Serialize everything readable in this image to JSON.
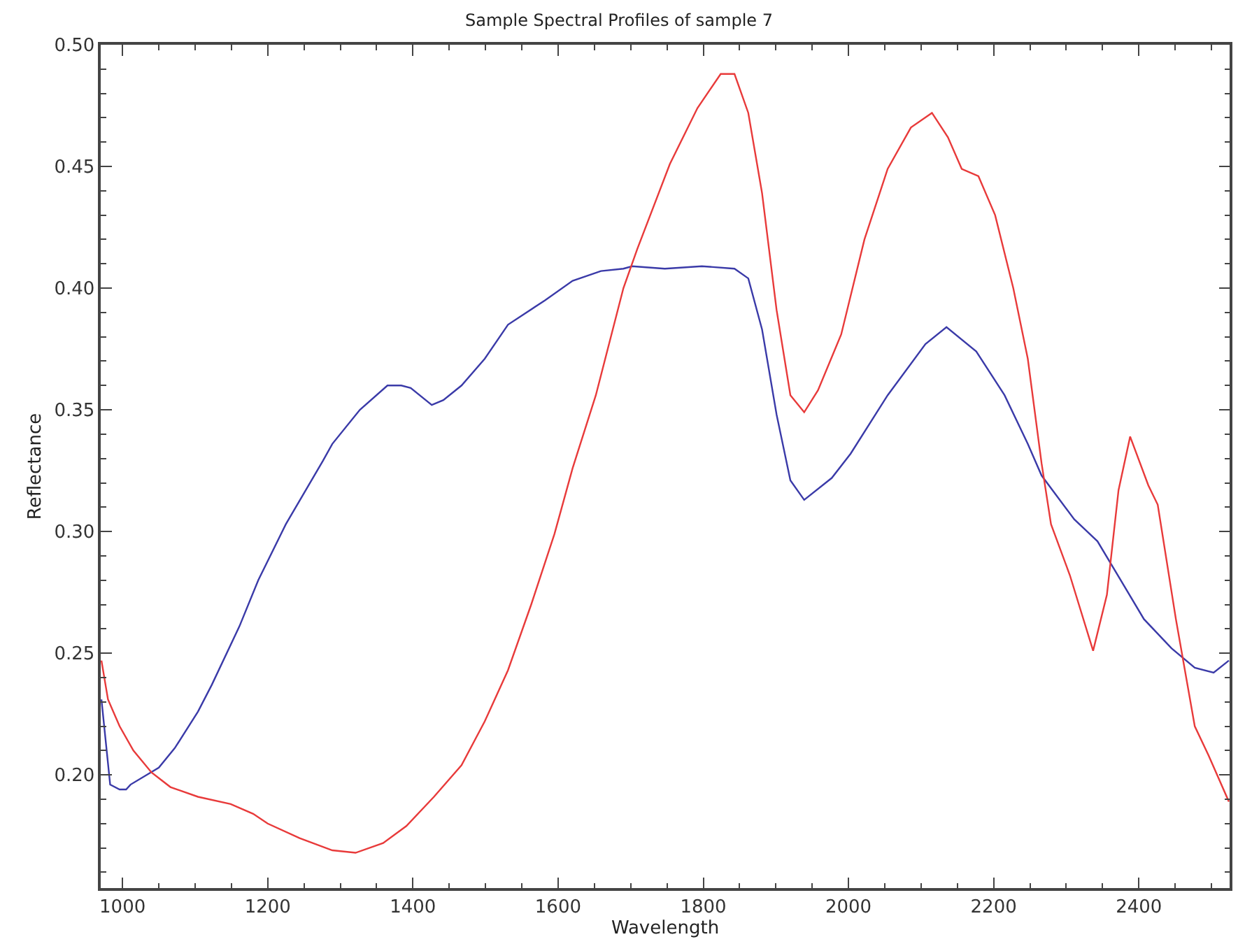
{
  "chart_data": {
    "type": "line",
    "title": "Sample Spectral Profiles of sample 7",
    "xlabel": "Wavelength",
    "ylabel": "Reflectance",
    "xlim": [
      970,
      2525
    ],
    "ylim": [
      0.1535,
      0.5
    ],
    "xticks": [
      1000,
      1200,
      1400,
      1600,
      1800,
      2000,
      2200,
      2400
    ],
    "yticks": [
      {
        "value": 0.2,
        "label": "0.20"
      },
      {
        "value": 0.25,
        "label": "0.25"
      },
      {
        "value": 0.3,
        "label": "0.30"
      },
      {
        "value": 0.35,
        "label": "0.35"
      },
      {
        "value": 0.4,
        "label": "0.40"
      },
      {
        "value": 0.45,
        "label": "0.45"
      },
      {
        "value": 0.5,
        "label": "0.50"
      }
    ],
    "legend": false,
    "marker": "none",
    "line_style": "solid",
    "series": [
      {
        "color": "#3a3aa8",
        "x": [
          971,
          983,
          996,
          1005,
          1011,
          1050,
          1072,
          1104,
          1123,
          1161,
          1187,
          1225,
          1276,
          1289,
          1327,
          1365,
          1384,
          1397,
          1426,
          1442,
          1467,
          1499,
          1531,
          1582,
          1620,
          1659,
          1690,
          1702,
          1747,
          1798,
          1843,
          1862,
          1881,
          1901,
          1920,
          1939,
          1977,
          2003,
          2054,
          2106,
          2135,
          2176,
          2215,
          2247,
          2266,
          2311,
          2343,
          2375,
          2407,
          2445,
          2477,
          2503,
          2524
        ],
        "values": [
          0.231,
          0.196,
          0.194,
          0.194,
          0.196,
          0.203,
          0.211,
          0.226,
          0.237,
          0.261,
          0.28,
          0.303,
          0.329,
          0.336,
          0.35,
          0.36,
          0.36,
          0.359,
          0.352,
          0.354,
          0.36,
          0.371,
          0.385,
          0.395,
          0.403,
          0.407,
          0.408,
          0.409,
          0.408,
          0.409,
          0.408,
          0.404,
          0.383,
          0.348,
          0.321,
          0.313,
          0.322,
          0.332,
          0.356,
          0.377,
          0.384,
          0.374,
          0.356,
          0.336,
          0.323,
          0.305,
          0.296,
          0.28,
          0.264,
          0.252,
          0.244,
          0.242,
          0.247
        ]
      },
      {
        "color": "#e83a3a",
        "x": [
          971,
          980,
          996,
          1015,
          1040,
          1066,
          1104,
          1149,
          1180,
          1200,
          1244,
          1289,
          1321,
          1359,
          1391,
          1429,
          1467,
          1499,
          1531,
          1563,
          1595,
          1620,
          1652,
          1690,
          1709,
          1754,
          1792,
          1824,
          1843,
          1862,
          1881,
          1901,
          1920,
          1939,
          1958,
          1990,
          2022,
          2054,
          2086,
          2115,
          2137,
          2156,
          2179,
          2202,
          2227,
          2247,
          2266,
          2279,
          2305,
          2337,
          2356,
          2372,
          2388,
          2413,
          2426,
          2451,
          2477,
          2496,
          2524
        ],
        "values": [
          0.247,
          0.231,
          0.22,
          0.21,
          0.201,
          0.195,
          0.191,
          0.188,
          0.184,
          0.18,
          0.174,
          0.169,
          0.168,
          0.172,
          0.179,
          0.191,
          0.204,
          0.222,
          0.243,
          0.27,
          0.299,
          0.326,
          0.356,
          0.4,
          0.416,
          0.451,
          0.474,
          0.488,
          0.488,
          0.472,
          0.439,
          0.391,
          0.356,
          0.349,
          0.358,
          0.381,
          0.42,
          0.449,
          0.466,
          0.472,
          0.462,
          0.449,
          0.446,
          0.43,
          0.4,
          0.371,
          0.328,
          0.303,
          0.282,
          0.251,
          0.274,
          0.317,
          0.339,
          0.319,
          0.311,
          0.264,
          0.22,
          0.208,
          0.189
        ]
      }
    ]
  }
}
